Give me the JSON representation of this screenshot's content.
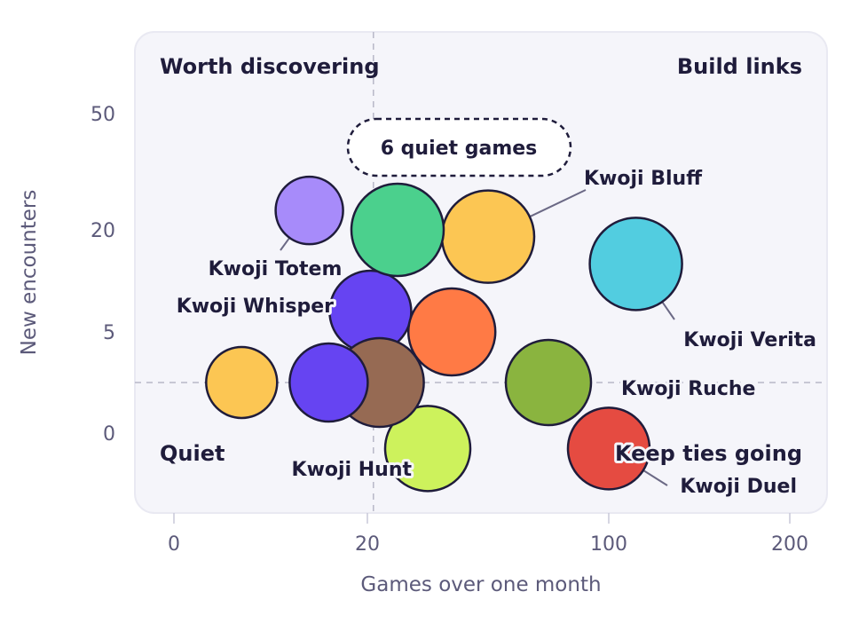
{
  "chart_data": {
    "type": "scatter",
    "variant": "bubble quadrant",
    "xlabel": "Games over one month",
    "ylabel": "New encounters",
    "x_ticks": [
      "0",
      "20",
      "100",
      "200"
    ],
    "y_ticks": [
      "0",
      "5",
      "20",
      "50"
    ],
    "quadrants": {
      "top_left": "Worth discovering",
      "top_right": "Build links",
      "bottom_left": "Quiet",
      "bottom_right": "Keep ties going"
    },
    "callout": "6 quiet games",
    "series": [
      {
        "name": "Kwoji Totem",
        "x": 14,
        "y": 25,
        "color": "#a78bfa",
        "labeled": true
      },
      {
        "name": "Kwoji Whisper",
        "x": 21,
        "y": 8,
        "color": "#6644f2",
        "labeled": true
      },
      {
        "name": "Kwoji Bluff",
        "x": 60,
        "y": 19,
        "color": "#fcc653",
        "labeled": true
      },
      {
        "name": "Kwoji Verita",
        "x": 115,
        "y": 15,
        "color": "#52cde0",
        "labeled": true
      },
      {
        "name": "Kwoji Ruche",
        "x": 80,
        "y": 2.5,
        "color": "#8ab43f",
        "labeled": true
      },
      {
        "name": "Kwoji Hunt",
        "x": 40,
        "y": -1,
        "color": "#cdf25c",
        "labeled": true
      },
      {
        "name": "Kwoji Duel",
        "x": 100,
        "y": -1,
        "color": "#e54b41",
        "labeled": true
      },
      {
        "name": "",
        "x": 30,
        "y": 20,
        "color": "#4bd08d",
        "labeled": false
      },
      {
        "name": "",
        "x": 48,
        "y": 5,
        "color": "#ff7a45",
        "labeled": false
      },
      {
        "name": "",
        "x": 24,
        "y": 2.5,
        "color": "#966a53",
        "labeled": false
      },
      {
        "name": "",
        "x": 16,
        "y": 2.5,
        "color": "#6644f2",
        "labeled": false
      },
      {
        "name": "",
        "x": 7,
        "y": 2.5,
        "color": "#fcc653",
        "labeled": false
      }
    ],
    "threshold_x": 22,
    "threshold_y": 2.5
  }
}
